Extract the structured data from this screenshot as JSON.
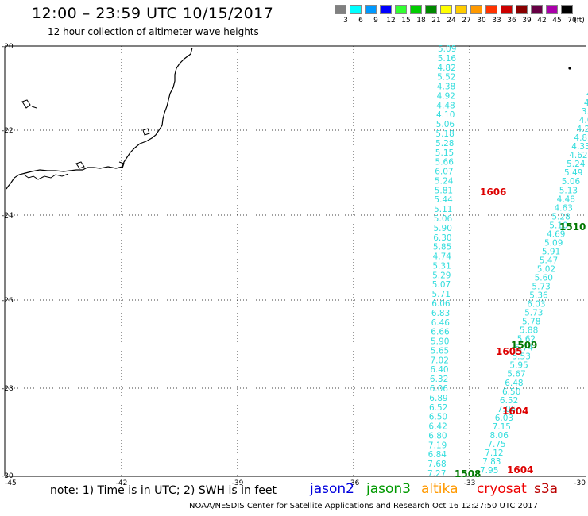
{
  "header": {
    "title": "12:00 – 23:59 UTC 10/15/2017",
    "subtitle": "12 hour collection of altimeter wave heights"
  },
  "legend": {
    "unit": "(ft)",
    "bins": [
      {
        "label": "3",
        "color": "#808080"
      },
      {
        "label": "6",
        "color": "#00ffff"
      },
      {
        "label": "9",
        "color": "#0099ff"
      },
      {
        "label": "12",
        "color": "#0000ff"
      },
      {
        "label": "15",
        "color": "#33ff33"
      },
      {
        "label": "18",
        "color": "#00cc00"
      },
      {
        "label": "21",
        "color": "#008800"
      },
      {
        "label": "24",
        "color": "#ffff00"
      },
      {
        "label": "27",
        "color": "#ffcc00"
      },
      {
        "label": "30",
        "color": "#ff9900"
      },
      {
        "label": "33",
        "color": "#ff3300"
      },
      {
        "label": "36",
        "color": "#cc0000"
      },
      {
        "label": "39",
        "color": "#880000"
      },
      {
        "label": "42",
        "color": "#660044"
      },
      {
        "label": "45",
        "color": "#aa00aa"
      },
      {
        "label": "70",
        "color": "#000000"
      }
    ]
  },
  "axes": {
    "lon_ticks": [
      "-45",
      "-42",
      "-39",
      "-36",
      "-33",
      "-30"
    ],
    "lat_ticks": [
      "-20",
      "-22",
      "-24",
      "-26",
      "-28",
      "-30"
    ]
  },
  "tracks": {
    "color": "#33dddd",
    "track_a": [
      "5.09",
      "5.16",
      "4.82",
      "5.52",
      "4.38",
      "4.92",
      "4.48",
      "4.10",
      "5.06",
      "5.18",
      "5.28",
      "5.15",
      "5.66",
      "6.07",
      "5.24",
      "5.81",
      "5.44",
      "5.11",
      "5.06",
      "5.90",
      "6.30",
      "5.85",
      "4.74",
      "5.31",
      "5.29",
      "5.07",
      "5.71",
      "6.06",
      "6.83",
      "6.46",
      "6.66",
      "5.90",
      "5.65",
      "7.02",
      "6.40",
      "6.32",
      "6.06",
      "6.89",
      "6.52",
      "6.50",
      "6.42",
      "6.80",
      "7.19",
      "6.84",
      "7.68",
      "7.27"
    ],
    "track_b": [
      "4.",
      "4.",
      "3.7",
      "4.06",
      "4.23",
      "4.82",
      "4.33",
      "4.62",
      "5.24",
      "5.49",
      "5.06",
      "5.13",
      "4.48",
      "4.63",
      "5.28",
      "5.10",
      "4.69",
      "5.09",
      "5.91",
      "5.47",
      "5.02",
      "5.60",
      "5.73",
      "5.36",
      "6.03",
      "5.73",
      "5.78",
      "5.88",
      "5.62",
      "5.74",
      "5.53",
      "5.95",
      "5.67",
      "6.48",
      "6.50",
      "6.52",
      "7.06",
      "6.03",
      "7.15",
      "8.06",
      "7.75",
      "7.12",
      "7.83",
      "7.95"
    ]
  },
  "time_labels": [
    {
      "text": "1606",
      "color": "#dd0000"
    },
    {
      "text": "1510",
      "color": "#007700"
    },
    {
      "text": "1509",
      "color": "#007700"
    },
    {
      "text": "1605",
      "color": "#dd0000"
    },
    {
      "text": "1604",
      "color": "#dd0000"
    },
    {
      "text": "1508",
      "color": "#007700"
    },
    {
      "text": "1604",
      "color": "#dd0000"
    }
  ],
  "footer": {
    "note": "note: 1) Time is in UTC; 2) SWH is in feet",
    "satellites": [
      {
        "name": "jason2",
        "color": "#0000dd"
      },
      {
        "name": "jason3",
        "color": "#009900"
      },
      {
        "name": "altika",
        "color": "#ff9900"
      },
      {
        "name": "cryosat",
        "color": "#ee0000"
      },
      {
        "name": "s3a",
        "color": "#bb0000"
      }
    ],
    "credit": "NOAA/NESDIS Center for Satellite Applications and Research    Oct 16 12:27:50 UTC 2017"
  }
}
